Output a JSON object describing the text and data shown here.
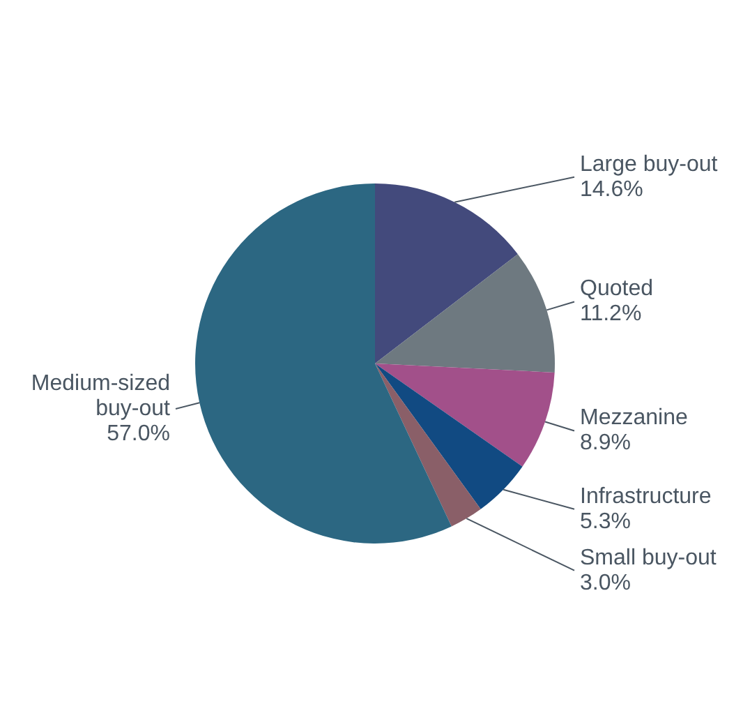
{
  "chart_data": {
    "type": "pie",
    "categories": [
      "Large buy-out",
      "Quoted",
      "Mezzanine",
      "Infrastructure",
      "Small buy-out",
      "Medium-sized buy-out"
    ],
    "values": [
      14.6,
      11.2,
      8.9,
      5.3,
      3.0,
      57.0
    ],
    "colors": [
      "#434a7c",
      "#6e7980",
      "#a2508a",
      "#114a82",
      "#8a5f68",
      "#2c6782"
    ],
    "value_labels": [
      "14.6%",
      "11.2%",
      "8.9%",
      "5.3%",
      "3.0%",
      "57.0%"
    ],
    "legend": false
  }
}
